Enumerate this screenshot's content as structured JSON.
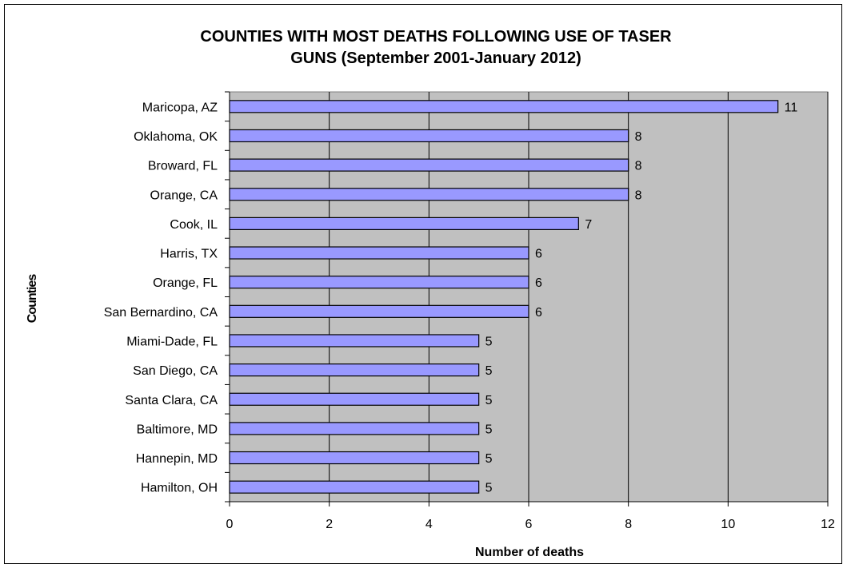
{
  "chart_data": {
    "type": "bar",
    "orientation": "horizontal",
    "title": "COUNTIES WITH MOST DEATHS FOLLOWING USE OF TASER GUNS (September 2001-January 2012)",
    "title_lines": [
      "COUNTIES WITH MOST DEATHS FOLLOWING USE OF TASER",
      "GUNS (September 2001-January 2012)"
    ],
    "xlabel": "Number of deaths",
    "ylabel": "Counties",
    "xlim": [
      0,
      12
    ],
    "xticks": [
      0,
      2,
      4,
      6,
      8,
      10,
      12
    ],
    "grid": true,
    "legend": "none",
    "categories": [
      "Maricopa, AZ",
      "Oklahoma, OK",
      "Broward, FL",
      "Orange, CA",
      "Cook, IL",
      "Harris, TX",
      "Orange, FL",
      "San Bernardino, CA",
      "Miami-Dade, FL",
      "San Diego, CA",
      "Santa Clara, CA",
      "Baltimore, MD",
      "Hannepin, MD",
      "Hamilton, OH"
    ],
    "values": [
      11,
      8,
      8,
      8,
      7,
      6,
      6,
      6,
      5,
      5,
      5,
      5,
      5,
      5
    ],
    "data_labels": true,
    "colors": {
      "bar": "#9999ff",
      "plot_bg": "#c0c0c0",
      "grid": "#000000"
    }
  }
}
